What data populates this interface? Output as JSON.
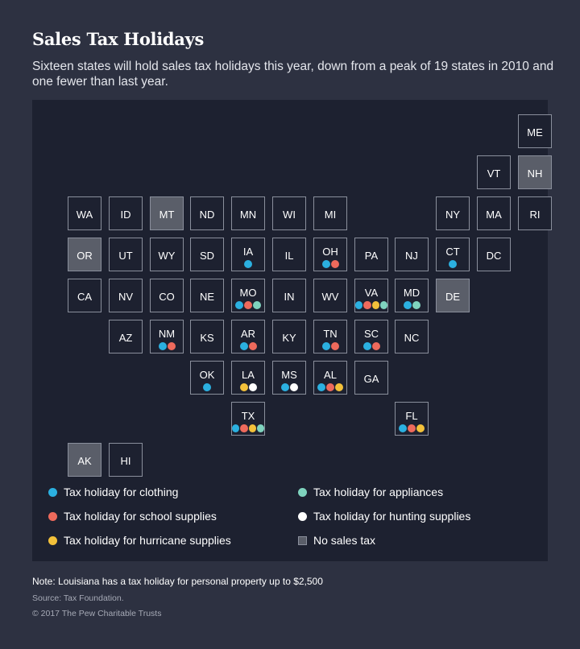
{
  "title": "Sales Tax Holidays",
  "subtitle": "Sixteen states will hold sales tax holidays this year, down from a peak of 19 states in 2010 and one fewer than last year.",
  "categories": {
    "clothing": {
      "label": "Tax holiday for clothing",
      "color": "#2bb0e0"
    },
    "school": {
      "label": "Tax holiday for school supplies",
      "color": "#ee6a5c"
    },
    "hurricane": {
      "label": "Tax holiday for hurricane supplies",
      "color": "#f3c13a"
    },
    "appliances": {
      "label": "Tax holiday for appliances",
      "color": "#7fd3be"
    },
    "hunting": {
      "label": "Tax holiday for hunting supplies",
      "color": "#ffffff"
    },
    "notax": {
      "label": "No sales tax"
    }
  },
  "states": [
    {
      "abbr": "ME",
      "col": 11,
      "row": 0,
      "holidays": []
    },
    {
      "abbr": "VT",
      "col": 10,
      "row": 1,
      "holidays": []
    },
    {
      "abbr": "NH",
      "col": 11,
      "row": 1,
      "holidays": [],
      "no_sales_tax": true
    },
    {
      "abbr": "WA",
      "col": 0,
      "row": 2,
      "holidays": []
    },
    {
      "abbr": "ID",
      "col": 1,
      "row": 2,
      "holidays": []
    },
    {
      "abbr": "MT",
      "col": 2,
      "row": 2,
      "holidays": [],
      "no_sales_tax": true
    },
    {
      "abbr": "ND",
      "col": 3,
      "row": 2,
      "holidays": []
    },
    {
      "abbr": "MN",
      "col": 4,
      "row": 2,
      "holidays": []
    },
    {
      "abbr": "WI",
      "col": 5,
      "row": 2,
      "holidays": []
    },
    {
      "abbr": "MI",
      "col": 6,
      "row": 2,
      "holidays": []
    },
    {
      "abbr": "NY",
      "col": 9,
      "row": 2,
      "holidays": []
    },
    {
      "abbr": "MA",
      "col": 10,
      "row": 2,
      "holidays": []
    },
    {
      "abbr": "RI",
      "col": 11,
      "row": 2,
      "holidays": []
    },
    {
      "abbr": "OR",
      "col": 0,
      "row": 3,
      "holidays": [],
      "no_sales_tax": true
    },
    {
      "abbr": "UT",
      "col": 1,
      "row": 3,
      "holidays": []
    },
    {
      "abbr": "WY",
      "col": 2,
      "row": 3,
      "holidays": []
    },
    {
      "abbr": "SD",
      "col": 3,
      "row": 3,
      "holidays": []
    },
    {
      "abbr": "IA",
      "col": 4,
      "row": 3,
      "holidays": [
        "clothing"
      ]
    },
    {
      "abbr": "IL",
      "col": 5,
      "row": 3,
      "holidays": []
    },
    {
      "abbr": "OH",
      "col": 6,
      "row": 3,
      "holidays": [
        "clothing",
        "school"
      ]
    },
    {
      "abbr": "PA",
      "col": 7,
      "row": 3,
      "holidays": []
    },
    {
      "abbr": "NJ",
      "col": 8,
      "row": 3,
      "holidays": []
    },
    {
      "abbr": "CT",
      "col": 9,
      "row": 3,
      "holidays": [
        "clothing"
      ]
    },
    {
      "abbr": "DC",
      "col": 10,
      "row": 3,
      "holidays": []
    },
    {
      "abbr": "CA",
      "col": 0,
      "row": 4,
      "holidays": []
    },
    {
      "abbr": "NV",
      "col": 1,
      "row": 4,
      "holidays": []
    },
    {
      "abbr": "CO",
      "col": 2,
      "row": 4,
      "holidays": []
    },
    {
      "abbr": "NE",
      "col": 3,
      "row": 4,
      "holidays": []
    },
    {
      "abbr": "MO",
      "col": 4,
      "row": 4,
      "holidays": [
        "clothing",
        "school",
        "appliances"
      ]
    },
    {
      "abbr": "IN",
      "col": 5,
      "row": 4,
      "holidays": []
    },
    {
      "abbr": "WV",
      "col": 6,
      "row": 4,
      "holidays": []
    },
    {
      "abbr": "VA",
      "col": 7,
      "row": 4,
      "holidays": [
        "clothing",
        "school",
        "hurricane",
        "appliances"
      ]
    },
    {
      "abbr": "MD",
      "col": 8,
      "row": 4,
      "holidays": [
        "clothing",
        "appliances"
      ]
    },
    {
      "abbr": "DE",
      "col": 9,
      "row": 4,
      "holidays": [],
      "no_sales_tax": true
    },
    {
      "abbr": "AZ",
      "col": 1,
      "row": 5,
      "holidays": []
    },
    {
      "abbr": "NM",
      "col": 2,
      "row": 5,
      "holidays": [
        "clothing",
        "school"
      ]
    },
    {
      "abbr": "KS",
      "col": 3,
      "row": 5,
      "holidays": []
    },
    {
      "abbr": "AR",
      "col": 4,
      "row": 5,
      "holidays": [
        "clothing",
        "school"
      ]
    },
    {
      "abbr": "KY",
      "col": 5,
      "row": 5,
      "holidays": []
    },
    {
      "abbr": "TN",
      "col": 6,
      "row": 5,
      "holidays": [
        "clothing",
        "school"
      ]
    },
    {
      "abbr": "SC",
      "col": 7,
      "row": 5,
      "holidays": [
        "clothing",
        "school"
      ]
    },
    {
      "abbr": "NC",
      "col": 8,
      "row": 5,
      "holidays": []
    },
    {
      "abbr": "OK",
      "col": 3,
      "row": 6,
      "holidays": [
        "clothing"
      ]
    },
    {
      "abbr": "LA",
      "col": 4,
      "row": 6,
      "holidays": [
        "hurricane",
        "hunting"
      ]
    },
    {
      "abbr": "MS",
      "col": 5,
      "row": 6,
      "holidays": [
        "clothing",
        "hunting"
      ]
    },
    {
      "abbr": "AL",
      "col": 6,
      "row": 6,
      "holidays": [
        "clothing",
        "school",
        "hurricane"
      ]
    },
    {
      "abbr": "GA",
      "col": 7,
      "row": 6,
      "holidays": []
    },
    {
      "abbr": "TX",
      "col": 4,
      "row": 7,
      "holidays": [
        "clothing",
        "school",
        "hurricane",
        "appliances"
      ]
    },
    {
      "abbr": "FL",
      "col": 8,
      "row": 7,
      "holidays": [
        "clothing",
        "school",
        "hurricane"
      ]
    },
    {
      "abbr": "AK",
      "col": 0,
      "row": 8,
      "holidays": [],
      "no_sales_tax": true
    },
    {
      "abbr": "HI",
      "col": 1,
      "row": 8,
      "holidays": []
    }
  ],
  "legend_order": {
    "left": [
      "clothing",
      "school",
      "hurricane"
    ],
    "right": [
      "appliances",
      "hunting",
      "notax"
    ]
  },
  "note": "Note: Louisiana has a tax holiday for personal property up to $2,500",
  "source": "Source: Tax Foundation.",
  "copyright": "© 2017 The Pew Charitable Trusts"
}
